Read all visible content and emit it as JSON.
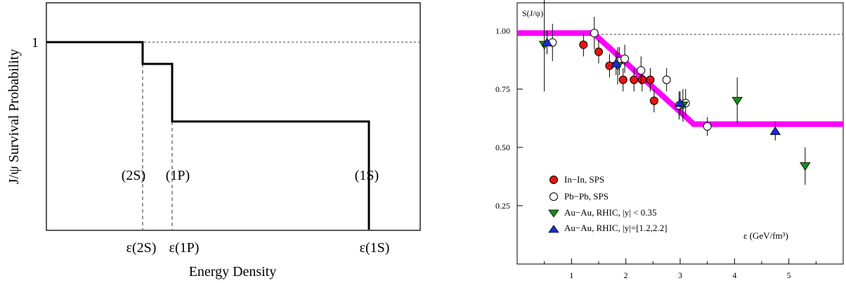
{
  "chart_data": [
    {
      "type": "line",
      "title": "",
      "xlabel": "Energy Density",
      "ylabel": "J/ψ Survival Probability",
      "y_tick_labels": [
        "1"
      ],
      "x_tick_labels": [
        "ε(2S)",
        "ε(1P)",
        "ε(1S)"
      ],
      "state_labels": [
        "(2S)",
        "(1P)",
        "(1S)"
      ],
      "step_levels": [
        1.0,
        0.88,
        0.6,
        0.0
      ],
      "grid": false
    },
    {
      "type": "scatter",
      "title": "",
      "ylabel": "S(J/ψ)",
      "xlabel": "ε (GeV/fm³)",
      "x_ticks": [
        "1",
        "2",
        "3",
        "4",
        "5"
      ],
      "y_ticks": [
        "0.25",
        "0.50",
        "0.75",
        "1.00"
      ],
      "xlim": [
        0.0,
        6.0
      ],
      "ylim": [
        0.0,
        1.12
      ],
      "legend_position": "bottom-left",
      "series": [
        {
          "name": "In−In, SPS",
          "marker": "circle",
          "color": "#ee1111",
          "points": [
            {
              "x": 1.22,
              "y": 0.94,
              "err": 0.05
            },
            {
              "x": 1.5,
              "y": 0.91,
              "err": 0.05
            },
            {
              "x": 1.7,
              "y": 0.85,
              "err": 0.05
            },
            {
              "x": 1.95,
              "y": 0.79,
              "err": 0.05
            },
            {
              "x": 2.15,
              "y": 0.79,
              "err": 0.05
            },
            {
              "x": 2.3,
              "y": 0.79,
              "err": 0.05
            },
            {
              "x": 2.45,
              "y": 0.79,
              "err": 0.05
            },
            {
              "x": 2.52,
              "y": 0.7,
              "err": 0.05
            }
          ]
        },
        {
          "name": "Pb−Pb, SPS",
          "marker": "open-circle",
          "color": "#ffffff",
          "points": [
            {
              "x": 0.65,
              "y": 0.95,
              "err": 0.08
            },
            {
              "x": 1.42,
              "y": 0.99,
              "err": 0.07
            },
            {
              "x": 1.88,
              "y": 0.87,
              "err": 0.06
            },
            {
              "x": 1.98,
              "y": 0.88,
              "err": 0.06
            },
            {
              "x": 2.28,
              "y": 0.83,
              "err": 0.06
            },
            {
              "x": 2.75,
              "y": 0.79,
              "err": 0.05
            },
            {
              "x": 2.98,
              "y": 0.68,
              "err": 0.06
            },
            {
              "x": 3.1,
              "y": 0.69,
              "err": 0.06
            },
            {
              "x": 3.5,
              "y": 0.59,
              "err": 0.04
            }
          ]
        },
        {
          "name": "Au−Au, RHIC, |y| < 0.35",
          "marker": "triangle-down",
          "color": "#1a8a1a",
          "points": [
            {
              "x": 0.5,
              "y": 0.94,
              "err": 0.2
            },
            {
              "x": 1.85,
              "y": 0.85,
              "err": 0.08
            },
            {
              "x": 3.05,
              "y": 0.68,
              "err": 0.07
            },
            {
              "x": 4.05,
              "y": 0.7,
              "err": 0.1
            },
            {
              "x": 5.3,
              "y": 0.42,
              "err": 0.08
            }
          ]
        },
        {
          "name": "Au−Au, RHIC, |y|=[1.2,2.2]",
          "marker": "triangle-up",
          "color": "#1a2ad8",
          "points": [
            {
              "x": 0.55,
              "y": 0.95,
              "err": 0.05
            },
            {
              "x": 1.82,
              "y": 0.86,
              "err": 0.05
            },
            {
              "x": 3.0,
              "y": 0.69,
              "err": 0.05
            },
            {
              "x": 4.75,
              "y": 0.57,
              "err": 0.04
            }
          ]
        }
      ],
      "model_curve": {
        "color": "#ff00ff",
        "x": [
          0.0,
          1.4,
          3.25,
          6.0
        ],
        "y": [
          0.99,
          0.99,
          0.6,
          0.6
        ]
      }
    }
  ]
}
